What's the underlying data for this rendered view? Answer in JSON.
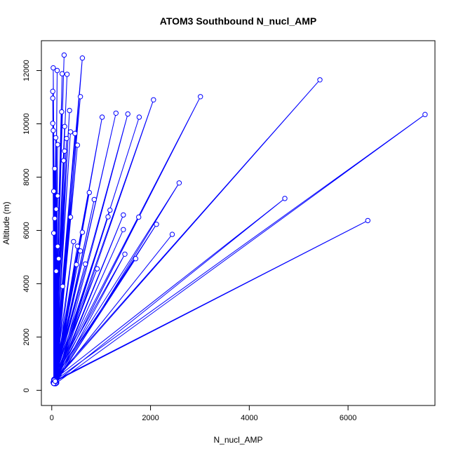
{
  "chart_data": {
    "type": "line",
    "title": "ATOM3 Southbound N_nucl_AMP",
    "xlabel": "N_nucl_AMP",
    "ylabel": "Altitude (m)",
    "xlim": [
      -210,
      7760
    ],
    "ylim": [
      -570,
      13120
    ],
    "xticks": [
      0,
      2000,
      4000,
      6000
    ],
    "yticks": [
      0,
      2000,
      4000,
      6000,
      8000,
      10000,
      12000
    ],
    "grid": false,
    "legend": "none",
    "line_color": "#0000ff",
    "marker": "open-circle",
    "series": [
      {
        "values": [
          [
            60,
            250
          ],
          [
            250,
            12580
          ],
          [
            40,
            320
          ],
          [
            620,
            12470
          ],
          [
            100,
            280
          ],
          [
            7560,
            10350
          ],
          [
            50,
            350
          ],
          [
            6400,
            6370
          ],
          [
            30,
            300
          ],
          [
            5430,
            11650
          ],
          [
            60,
            420
          ],
          [
            4720,
            7200
          ],
          [
            50,
            260
          ],
          [
            3010,
            11020
          ],
          [
            40,
            380
          ],
          [
            2580,
            7780
          ],
          [
            80,
            250
          ],
          [
            2060,
            10900
          ],
          [
            60,
            330
          ],
          [
            2440,
            5850
          ],
          [
            40,
            280
          ],
          [
            2120,
            6230
          ],
          [
            90,
            310
          ],
          [
            1540,
            10370
          ],
          [
            50,
            290
          ],
          [
            1300,
            10400
          ],
          [
            70,
            350
          ],
          [
            1770,
            10250
          ],
          [
            60,
            270
          ],
          [
            1700,
            4940
          ],
          [
            40,
            400
          ],
          [
            1480,
            5110
          ],
          [
            80,
            300
          ],
          [
            1450,
            6580
          ],
          [
            50,
            260
          ],
          [
            1450,
            6030
          ],
          [
            70,
            330
          ],
          [
            1760,
            6500
          ],
          [
            60,
            290
          ],
          [
            1020,
            10250
          ],
          [
            40,
            360
          ],
          [
            1140,
            6510
          ],
          [
            80,
            270
          ],
          [
            1180,
            6760
          ],
          [
            50,
            420
          ],
          [
            920,
            4560
          ],
          [
            60,
            310
          ],
          [
            680,
            4740
          ],
          [
            30,
            280
          ],
          [
            760,
            7420
          ],
          [
            70,
            350
          ],
          [
            860,
            7160
          ],
          [
            50,
            300
          ],
          [
            620,
            5930
          ],
          [
            60,
            380
          ],
          [
            580,
            5230
          ],
          [
            40,
            260
          ],
          [
            500,
            4720
          ],
          [
            90,
            320
          ],
          [
            440,
            5580
          ],
          [
            50,
            290
          ],
          [
            520,
            5410
          ],
          [
            60,
            340
          ],
          [
            380,
            6500
          ],
          [
            40,
            270
          ],
          [
            470,
            9640
          ],
          [
            80,
            310
          ],
          [
            520,
            9200
          ],
          [
            50,
            380
          ],
          [
            380,
            9700
          ],
          [
            60,
            290
          ],
          [
            300,
            9450
          ],
          [
            40,
            260
          ],
          [
            260,
            9900
          ],
          [
            70,
            330
          ],
          [
            210,
            11880
          ],
          [
            50,
            280
          ],
          [
            310,
            11860
          ],
          [
            60,
            350
          ],
          [
            110,
            12000
          ],
          [
            40,
            300
          ],
          [
            30,
            12100
          ],
          [
            80,
            270
          ],
          [
            20,
            11220
          ],
          [
            50,
            410
          ],
          [
            20,
            10960
          ],
          [
            60,
            290
          ],
          [
            580,
            11020
          ],
          [
            40,
            330
          ],
          [
            360,
            10500
          ],
          [
            70,
            260
          ],
          [
            200,
            10450
          ],
          [
            50,
            370
          ],
          [
            20,
            10020
          ],
          [
            60,
            300
          ],
          [
            30,
            9750
          ],
          [
            40,
            280
          ],
          [
            80,
            9480
          ],
          [
            80,
            340
          ],
          [
            120,
            9220
          ],
          [
            50,
            270
          ],
          [
            260,
            8980
          ],
          [
            60,
            400
          ],
          [
            240,
            8620
          ],
          [
            40,
            300
          ],
          [
            60,
            8320
          ],
          [
            70,
            260
          ],
          [
            40,
            7470
          ],
          [
            50,
            350
          ],
          [
            120,
            7300
          ],
          [
            60,
            290
          ],
          [
            90,
            6800
          ],
          [
            40,
            330
          ],
          [
            60,
            6450
          ],
          [
            80,
            270
          ],
          [
            40,
            5900
          ],
          [
            50,
            380
          ],
          [
            120,
            5400
          ],
          [
            60,
            300
          ],
          [
            140,
            4940
          ],
          [
            40,
            260
          ],
          [
            90,
            4470
          ],
          [
            70,
            340
          ],
          [
            220,
            3900
          ]
        ]
      }
    ]
  }
}
